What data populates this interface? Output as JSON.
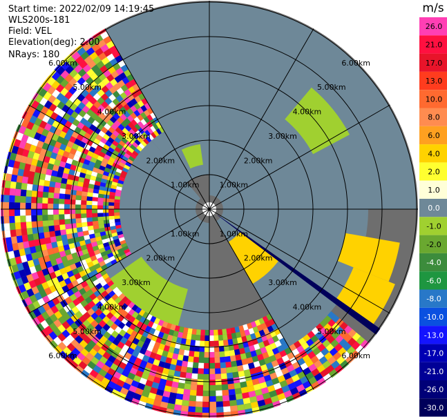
{
  "header": {
    "start_time": "Start time: 2022/02/09 14:19:45",
    "station": "WLS200s-181",
    "field": "Field: VEL",
    "elevation": "Elevation(deg): 2.00",
    "nrays": "NRays: 180"
  },
  "chart_data": {
    "type": "ppi_polar",
    "range_rings_km": [
      1,
      2,
      3,
      4,
      5,
      6
    ],
    "ring_labels": [
      "1.00km",
      "2.00km",
      "3.00km",
      "4.00km",
      "5.00km",
      "6.00km"
    ],
    "azimuth_spokes_deg": [
      0,
      30,
      60,
      90,
      120,
      150,
      180,
      210,
      240,
      270,
      300,
      330
    ],
    "colorbar": {
      "unit": "m/s",
      "levels": [
        "26.0",
        "21.0",
        "17.0",
        "13.0",
        "10.0",
        "8.0",
        "6.0",
        "4.0",
        "2.0",
        "1.0",
        "0.0",
        "-1.0",
        "-2.0",
        "-4.0",
        "-6.0",
        "-8.0",
        "-10.0",
        "-13.0",
        "-17.0",
        "-21.0",
        "-26.0",
        "-30.0"
      ],
      "colors": [
        "#ff3fb4",
        "#ff1040",
        "#e8142a",
        "#ff3c1e",
        "#ff6a30",
        "#ff8c50",
        "#ffa020",
        "#ffd200",
        "#ffff30",
        "#ffffd8",
        "#6e8898",
        "#a0d030",
        "#6aa830",
        "#3c8c3c",
        "#1e9640",
        "#2878c8",
        "#0a50e0",
        "#1414ff",
        "#0000b4",
        "#000096",
        "#000078",
        "#00005a"
      ]
    },
    "regions": [
      {
        "az": [
          320,
          360
        ],
        "r": [
          1.0,
          6.0
        ],
        "value": "0.0"
      },
      {
        "az": [
          0,
          90
        ],
        "r": [
          0.4,
          6.0
        ],
        "value": "0.0"
      },
      {
        "az": [
          90,
          150
        ],
        "r": [
          0.4,
          4.6
        ],
        "value": "0.0"
      },
      {
        "az": [
          180,
          240
        ],
        "r": [
          0.4,
          3.5
        ],
        "value": "0.0"
      },
      {
        "az": [
          240,
          320
        ],
        "r": [
          0.4,
          2.6
        ],
        "value": "0.0"
      },
      {
        "az": [
          40,
          62
        ],
        "r": [
          3.4,
          4.6
        ],
        "value": "-1.0"
      },
      {
        "az": [
          335,
          352
        ],
        "r": [
          1.3,
          1.9
        ],
        "value": "-1.0"
      },
      {
        "az": [
          195,
          235
        ],
        "r": [
          2.4,
          4.8
        ],
        "value": "-1.0"
      },
      {
        "az": [
          125,
          150
        ],
        "r": [
          1.1,
          2.5
        ],
        "value": "4.0"
      },
      {
        "az": [
          100,
          112
        ],
        "r": [
          4.0,
          5.6
        ],
        "value": "4.0"
      },
      {
        "az": [
          112,
          125
        ],
        "r": [
          4.5,
          5.8
        ],
        "value": "4.0"
      }
    ],
    "noisy_sectors": [
      {
        "az": [
          240,
          330
        ],
        "r": [
          2.6,
          6.6
        ]
      },
      {
        "az": [
          150,
          240
        ],
        "r": [
          3.5,
          6.6
        ]
      },
      {
        "az": [
          130,
          150
        ],
        "r": [
          4.6,
          6.6
        ]
      }
    ],
    "beam_blockage": {
      "az": 126,
      "r": [
        0.3,
        6.6
      ],
      "value": "-30.0"
    }
  }
}
